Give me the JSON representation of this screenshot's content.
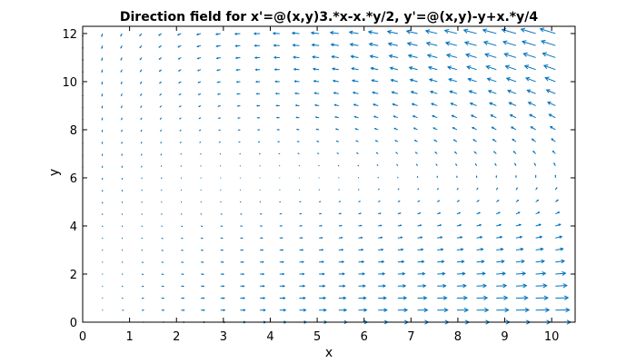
{
  "chart_data": {
    "type": "quiver",
    "title": "Direction field for x'=@(x,y)3.*x-x.*y/2, y'=@(x,y)-y+x.*y/4",
    "xlabel": "x",
    "ylabel": "y",
    "xlim": [
      0,
      10.5
    ],
    "ylim": [
      0,
      12.3
    ],
    "x_ticks": [
      0,
      1,
      2,
      3,
      4,
      5,
      6,
      7,
      8,
      9,
      10
    ],
    "y_ticks": [
      0,
      2,
      4,
      6,
      8,
      10,
      12
    ],
    "x_tick_labels": [
      "0",
      "1",
      "2",
      "3",
      "4",
      "5",
      "6",
      "7",
      "8",
      "9",
      "10"
    ],
    "y_tick_labels": [
      "0",
      "2",
      "4",
      "6",
      "8",
      "10",
      "12"
    ],
    "grid": false,
    "box": true,
    "system": {
      "dx": "3*x - x*y/2",
      "dy": "-y + x*y/4"
    },
    "sampling": {
      "x_start": 0,
      "x_step": 0.42,
      "x_count": 25,
      "y_start": 0,
      "y_step": 0.5,
      "y_count": 25
    },
    "arrow_color": "#0072bd"
  }
}
